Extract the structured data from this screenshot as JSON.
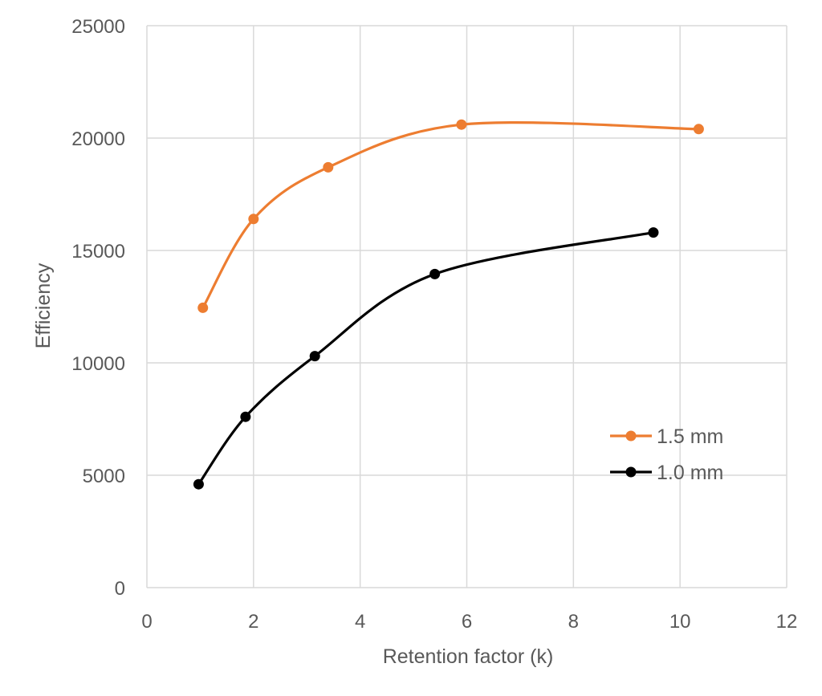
{
  "chart_data": {
    "type": "scatter",
    "xlabel": "Retention factor (k)",
    "ylabel": "Efficiency",
    "xlim": [
      0,
      12
    ],
    "ylim": [
      0,
      25000
    ],
    "xticks": [
      "0",
      "2",
      "4",
      "6",
      "8",
      "10",
      "12"
    ],
    "yticks": [
      "0",
      "5000",
      "10000",
      "15000",
      "20000",
      "25000"
    ],
    "grid": true,
    "smooth_lines": true,
    "legend_position": "right",
    "series": [
      {
        "name": "1.5 mm",
        "color": "#ed7d31",
        "points": [
          {
            "x": 1.05,
            "y": 12450
          },
          {
            "x": 2.0,
            "y": 16400
          },
          {
            "x": 3.4,
            "y": 18700
          },
          {
            "x": 5.9,
            "y": 20600
          },
          {
            "x": 10.35,
            "y": 20400
          }
        ]
      },
      {
        "name": "1.0 mm",
        "color": "#000000",
        "points": [
          {
            "x": 0.97,
            "y": 4600
          },
          {
            "x": 1.85,
            "y": 7600
          },
          {
            "x": 3.15,
            "y": 10300
          },
          {
            "x": 5.4,
            "y": 13950
          },
          {
            "x": 9.5,
            "y": 15800
          }
        ]
      }
    ]
  }
}
